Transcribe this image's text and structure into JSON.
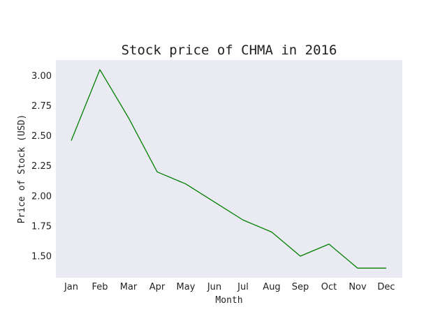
{
  "chart_data": {
    "type": "line",
    "title": "Stock price of CHMA in 2016",
    "xlabel": "Month",
    "ylabel": "Price of Stock (USD)",
    "categories": [
      "Jan",
      "Feb",
      "Mar",
      "Apr",
      "May",
      "Jun",
      "Jul",
      "Aug",
      "Sep",
      "Oct",
      "Nov",
      "Dec"
    ],
    "series": [
      {
        "values": [
          2.46,
          3.05,
          2.65,
          2.2,
          2.1,
          1.95,
          1.8,
          1.7,
          1.5,
          1.6,
          1.4,
          1.4
        ]
      }
    ],
    "ylim": [
      1.32,
      3.13
    ],
    "yticks": [
      1.5,
      1.75,
      2.0,
      2.25,
      2.5,
      2.75,
      3.0
    ],
    "ytick_labels": [
      "1.50",
      "1.75",
      "2.00",
      "2.25",
      "2.50",
      "2.75",
      "3.00"
    ],
    "grid": false,
    "colors": {
      "line": "#008000",
      "plot_background": "#eaeaf2"
    }
  }
}
